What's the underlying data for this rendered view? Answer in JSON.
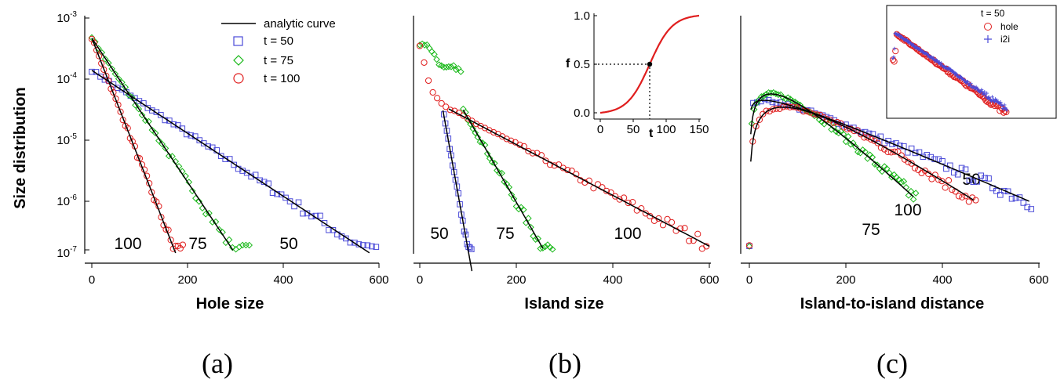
{
  "figure": {
    "ylabel": "Size distribution",
    "y_tick_labels": [
      {
        "base": "10",
        "exp": "-3"
      },
      {
        "base": "10",
        "exp": "-4"
      },
      {
        "base": "10",
        "exp": "-5"
      },
      {
        "base": "10",
        "exp": "-6"
      },
      {
        "base": "10",
        "exp": "-7"
      }
    ],
    "legend": [
      {
        "label": "analytic curve",
        "marker": "line"
      },
      {
        "label": "t = 50",
        "marker": "square"
      },
      {
        "label": "t = 75",
        "marker": "diamond"
      },
      {
        "label": "t = 100",
        "marker": "circle"
      }
    ],
    "colors": {
      "t50": "#4a4ad8",
      "t75": "#18b818",
      "t100": "#e01e1e",
      "fit": "#000000",
      "analytic_f": "#e01e1e"
    },
    "x_tick_labels": [
      "0",
      "200",
      "400",
      "600"
    ]
  },
  "panels": {
    "a": {
      "label": "(a)",
      "xlabel": "Hole size",
      "curve_labels": [
        "100",
        "75",
        "50"
      ]
    },
    "b": {
      "label": "(b)",
      "xlabel": "Island size",
      "curve_labels": [
        "50",
        "75",
        "100"
      ]
    },
    "c": {
      "label": "(c)",
      "xlabel": "Island-to-island distance",
      "curve_labels": [
        "50",
        "100",
        "75"
      ]
    },
    "b_inset": {
      "ylabel": "f",
      "xlabel": "t",
      "x_tick_labels": [
        "0",
        "50",
        "100",
        "150"
      ],
      "y_tick_labels": [
        "1.0",
        "0.5",
        "0.0"
      ]
    },
    "c_inset": {
      "title": "t = 50",
      "legend": [
        {
          "label": "hole",
          "marker": "circle"
        },
        {
          "label": "i2i",
          "marker": "plus"
        }
      ]
    }
  },
  "chart_data": [
    {
      "type": "scatter",
      "panel": "a",
      "xlabel": "Hole size",
      "ylabel": "Size distribution",
      "xlim": [
        0,
        600
      ],
      "ylim": [
        1e-07,
        0.001
      ],
      "yscale": "log",
      "grid": false,
      "series": [
        {
          "name": "t = 50",
          "marker": "square",
          "fit": {
            "A": 0.000125,
            "decay": 80,
            "x_range": [
              0,
              580
            ]
          },
          "points_x_range": [
            0,
            595
          ],
          "x_step": 9
        },
        {
          "name": "t = 75",
          "marker": "diamond",
          "fit": {
            "A": 0.00045,
            "decay": 35,
            "x_range": [
              0,
              295
            ]
          },
          "points_x_range": [
            0,
            330
          ],
          "x_step": 7
        },
        {
          "name": "t = 100",
          "marker": "circle",
          "fit": {
            "A": 0.00045,
            "decay": 20.5,
            "x_range": [
              0,
              175
            ]
          },
          "points_x_range": [
            0,
            190
          ],
          "x_step": 5
        }
      ]
    },
    {
      "type": "scatter",
      "panel": "b",
      "xlabel": "Island size",
      "ylabel": "Size distribution",
      "xlim": [
        0,
        600
      ],
      "ylim": [
        1e-07,
        0.001
      ],
      "yscale": "log",
      "grid": false,
      "series": [
        {
          "name": "t = 50",
          "marker": "square",
          "fit": {
            "A": 3.5e-05,
            "decay": 9.4,
            "x0": 45,
            "x_range": [
              48,
              108
            ]
          },
          "points_x_range": [
            50,
            108
          ],
          "x_step": 3
        },
        {
          "name": "t = 75",
          "marker": "diamond",
          "fit": {
            "A": 2.6e-05,
            "decay": 30,
            "x0": 90,
            "x_range": [
              90,
              255
            ]
          },
          "points_x_range": [
            0,
            275
          ],
          "x_step": 5
        },
        {
          "name": "t = 100",
          "marker": "circle",
          "fit": {
            "A": 2.7e-05,
            "decay": 99,
            "x0": 60,
            "x_range": [
              60,
              600
            ]
          },
          "points_x_range": [
            0,
            600
          ],
          "x_step": 9
        }
      ]
    },
    {
      "type": "line",
      "panel": "b_inset",
      "xlabel": "t",
      "ylabel": "f",
      "xlim": [
        -10,
        155
      ],
      "ylim": [
        0,
        1
      ],
      "grid": false,
      "series": [
        {
          "name": "analytic f(t)",
          "x": [
            0,
            25,
            50,
            60,
            75,
            90,
            100,
            125,
            150
          ],
          "values": [
            0.0,
            0.05,
            0.2,
            0.3,
            0.5,
            0.7,
            0.8,
            0.96,
            1.0
          ]
        }
      ],
      "marked_point": {
        "x": 75,
        "y": 0.5
      }
    },
    {
      "type": "scatter",
      "panel": "c",
      "xlabel": "Island-to-island distance",
      "ylabel": "Size distribution",
      "xlim": [
        -10,
        600
      ],
      "ylim": [
        1e-07,
        0.001
      ],
      "yscale": "log",
      "grid": false,
      "series": [
        {
          "name": "t = 50",
          "marker": "square",
          "fit": {
            "peak_x": 30,
            "peak_y": 3.8e-05,
            "decay": 115,
            "x_range": [
              3,
              580
            ]
          },
          "points_x_range": [
            0,
            590
          ],
          "x_step": 8
        },
        {
          "name": "t = 75",
          "marker": "diamond",
          "fit": {
            "peak_x": 45,
            "peak_y": 4.9e-05,
            "decay": 50,
            "x_range": [
              3,
              340
            ]
          },
          "points_x_range": [
            0,
            345
          ],
          "x_step": 5
        },
        {
          "name": "t = 100",
          "marker": "circle",
          "fit": {
            "peak_x": 70,
            "peak_y": 2.9e-05,
            "decay": 71,
            "x_range": [
              3,
              465
            ]
          },
          "points_x_range": [
            0,
            470
          ],
          "x_step": 7
        }
      ]
    },
    {
      "type": "scatter",
      "panel": "c_inset",
      "title": "t = 50",
      "yscale": "log",
      "grid": false,
      "series": [
        {
          "name": "hole",
          "marker": "circle",
          "decay": 80,
          "x_range": [
            0,
            600
          ]
        },
        {
          "name": "i2i",
          "marker": "plus",
          "decay": 115,
          "x_range": [
            0,
            600
          ]
        }
      ]
    }
  ]
}
